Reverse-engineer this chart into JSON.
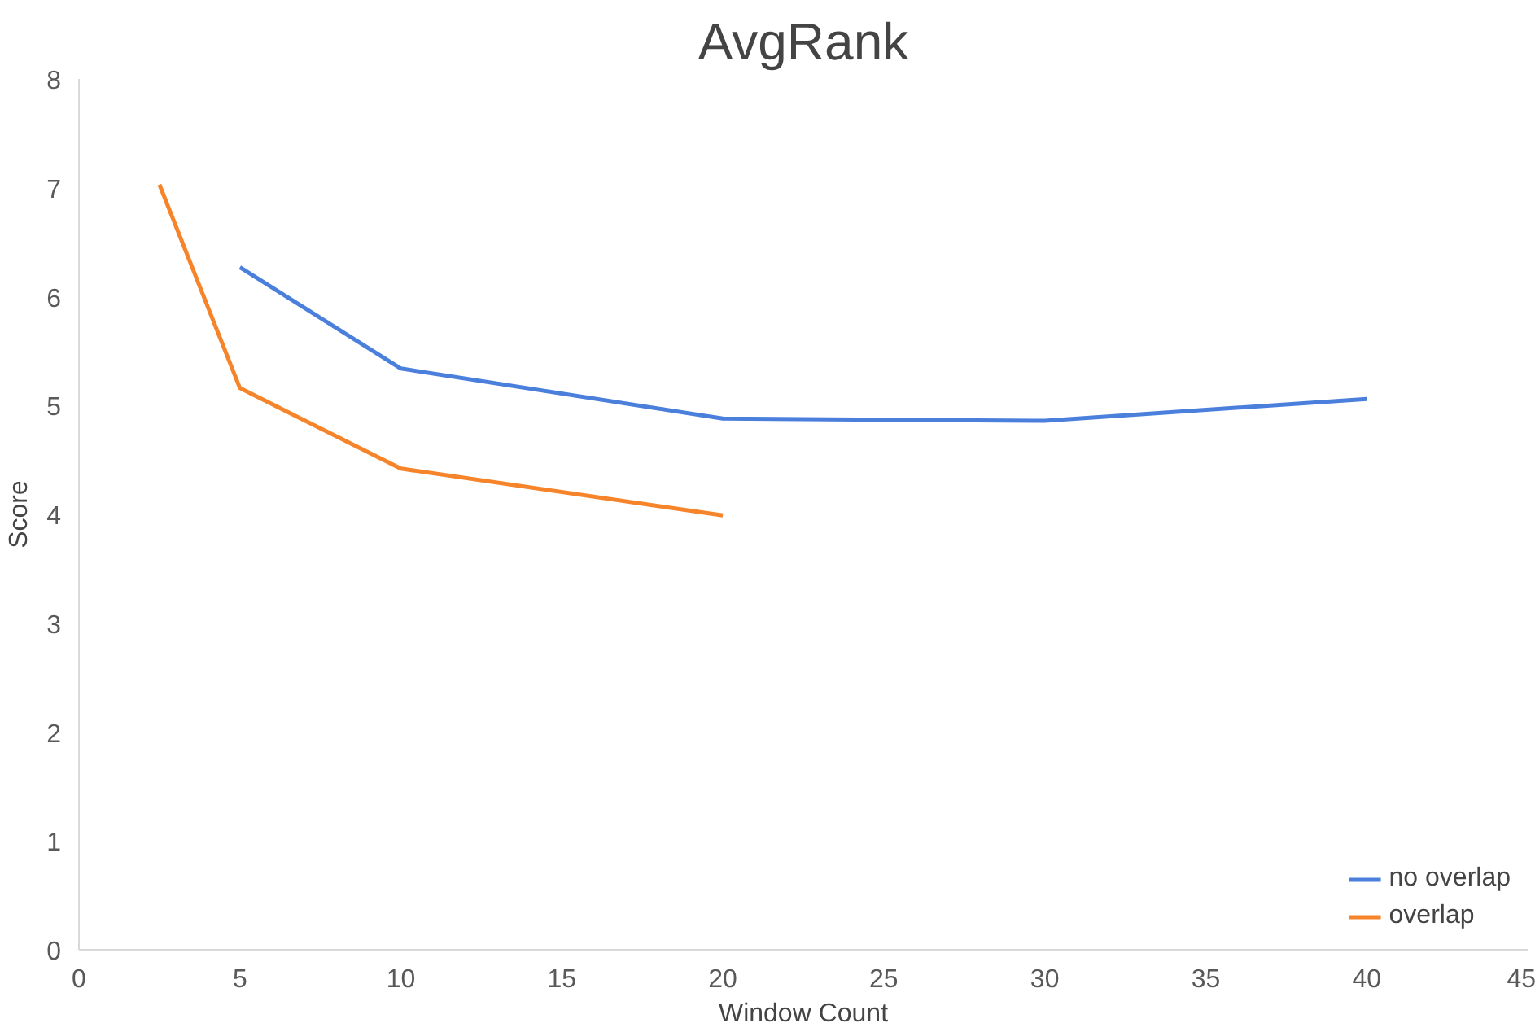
{
  "chart_data": {
    "type": "line",
    "title": "AvgRank",
    "xlabel": "Window Count",
    "ylabel": "Score",
    "xlim": [
      0,
      45
    ],
    "xticks": [
      0,
      5,
      10,
      15,
      20,
      25,
      30,
      35,
      40,
      45
    ],
    "ylim": [
      0,
      8
    ],
    "yticks": [
      0,
      1,
      2,
      3,
      4,
      5,
      6,
      7,
      8
    ],
    "grid": false,
    "legend": "bottom right",
    "marker": "none",
    "line_style": "solid",
    "series": [
      {
        "name": "no overlap",
        "color": "#4a7fdc",
        "x": [
          5,
          10,
          20,
          30,
          40
        ],
        "values": [
          6.27,
          5.34,
          4.88,
          4.86,
          5.06
        ]
      },
      {
        "name": "overlap",
        "color": "#f5842b",
        "x": [
          2.5,
          5,
          10,
          20
        ],
        "values": [
          7.03,
          5.16,
          4.42,
          3.99
        ]
      }
    ]
  }
}
